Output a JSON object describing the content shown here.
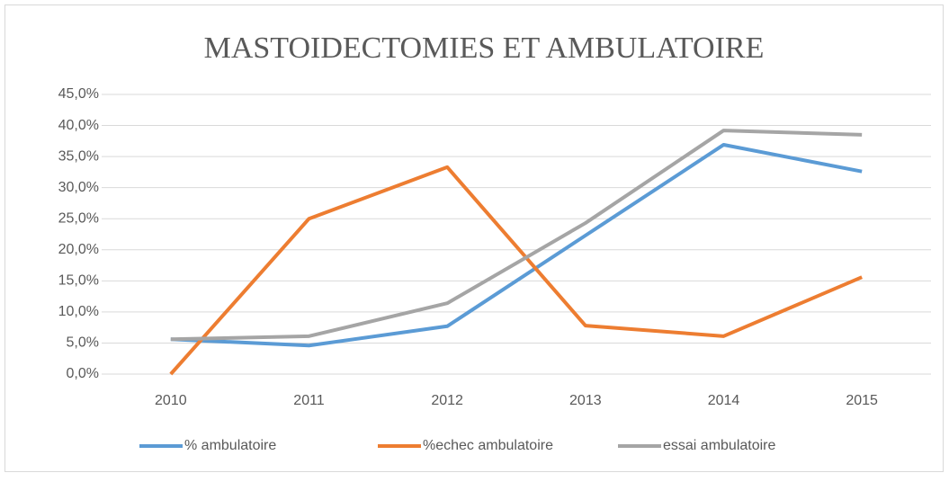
{
  "chart_data": {
    "type": "line",
    "title": "MASTOIDECTOMIES ET AMBULATOIRE",
    "categories": [
      "2010",
      "2011",
      "2012",
      "2013",
      "2014",
      "2015"
    ],
    "series": [
      {
        "name": "% ambulatoire",
        "color": "#5b9bd5",
        "values": [
          5.6,
          4.6,
          7.7,
          22.3,
          36.9,
          32.6
        ]
      },
      {
        "name": "%echec ambulatoire",
        "color": "#ed7d31",
        "values": [
          0,
          25.0,
          33.3,
          7.8,
          6.1,
          15.6
        ]
      },
      {
        "name": "essai ambulatoire",
        "color": "#a5a5a5",
        "values": [
          5.6,
          6.1,
          11.4,
          24.3,
          39.2,
          38.5
        ]
      }
    ],
    "ylim": [
      0,
      45
    ],
    "yticks": [
      {
        "value": 0,
        "label": "0,0%"
      },
      {
        "value": 5,
        "label": "5,0%"
      },
      {
        "value": 10,
        "label": "10,0%"
      },
      {
        "value": 15,
        "label": "15,0%"
      },
      {
        "value": 20,
        "label": "20,0%"
      },
      {
        "value": 25,
        "label": "25,0%"
      },
      {
        "value": 30,
        "label": "30,0%"
      },
      {
        "value": 35,
        "label": "35,0%"
      },
      {
        "value": 40,
        "label": "40,0%"
      },
      {
        "value": 45,
        "label": "45,0%"
      }
    ],
    "grid": true,
    "legend": "bottom"
  }
}
